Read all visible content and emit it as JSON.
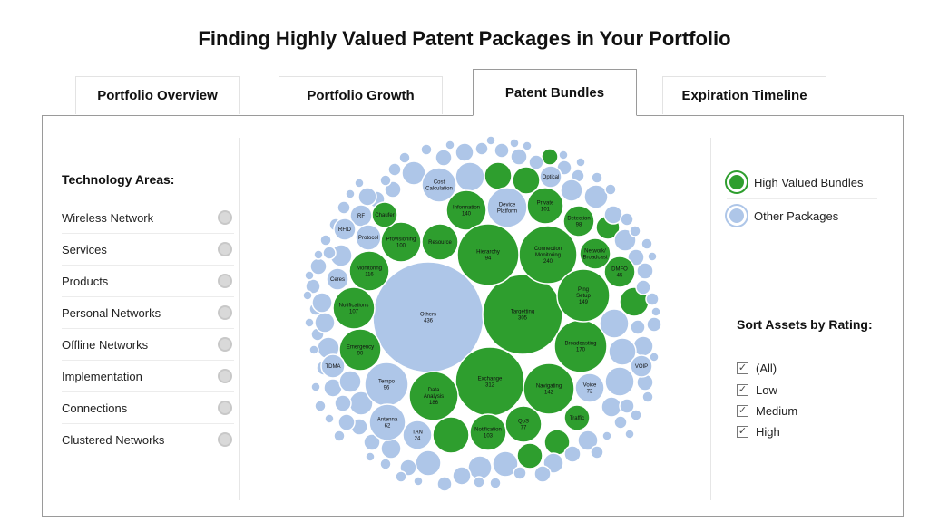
{
  "title": "Finding Highly Valued Patent Packages in Your Portfolio",
  "tabs": [
    {
      "label": "Portfolio Overview",
      "active": false
    },
    {
      "label": "Portfolio Growth",
      "active": false
    },
    {
      "label": "Patent Bundles",
      "active": true
    },
    {
      "label": "Expiration Timeline",
      "active": false
    }
  ],
  "technology_areas": {
    "title": "Technology Areas:",
    "items": [
      "Wireless Network",
      "Services",
      "Products",
      "Personal Networks",
      "Offline Networks",
      "Implementation",
      "Connections",
      "Clustered Networks"
    ]
  },
  "legend": {
    "high": {
      "label": "High Valued Bundles",
      "color": "#2e9e2e"
    },
    "other": {
      "label": "Other Packages",
      "color": "#aec6e8"
    }
  },
  "sort": {
    "title": "Sort Assets by Rating:",
    "options": [
      {
        "label": "(All)",
        "checked": true
      },
      {
        "label": "Low",
        "checked": true
      },
      {
        "label": "Medium",
        "checked": true
      },
      {
        "label": "High",
        "checked": true
      }
    ]
  },
  "chart_data": {
    "type": "bubble",
    "title": "",
    "colors": {
      "high": "#2e9e2e",
      "other": "#aec6e8",
      "border": "#ffffff"
    },
    "bubbles": [
      {
        "label": "Others",
        "value": 436,
        "group": "other"
      },
      {
        "label": "Exchange",
        "value": 312,
        "group": "high"
      },
      {
        "label": "Targetting",
        "value": 305,
        "group": "high"
      },
      {
        "label": "Connection Monitoring",
        "value": 240,
        "group": "high"
      },
      {
        "label": "Data Analysis",
        "value": 186,
        "group": "high"
      },
      {
        "label": "Broadcasting",
        "value": 170,
        "group": "high"
      },
      {
        "label": "Ping Setup",
        "value": 149,
        "group": "high"
      },
      {
        "label": "Navigating",
        "value": 142,
        "group": "high"
      },
      {
        "label": "Information",
        "value": 140,
        "group": "high"
      },
      {
        "label": "Monitoring",
        "value": 116,
        "group": "high"
      },
      {
        "label": "Notifications",
        "value": 107,
        "group": "high"
      },
      {
        "label": "Notification",
        "value": 103,
        "group": "high"
      },
      {
        "label": "Private",
        "value": 101,
        "group": "high"
      },
      {
        "label": "Provisioning",
        "value": 100,
        "group": "high"
      },
      {
        "label": "Detection",
        "value": 98,
        "group": "high"
      },
      {
        "label": "Tempo",
        "value": 96,
        "group": "other"
      },
      {
        "label": "Hierarchy",
        "value": 94,
        "group": "high"
      },
      {
        "label": "Emergency",
        "value": 90,
        "group": "high"
      },
      {
        "label": "QoS",
        "value": 77,
        "group": "high"
      },
      {
        "label": "Voice",
        "value": 72,
        "group": "other"
      },
      {
        "label": "Antenna",
        "value": 62,
        "group": "other"
      },
      {
        "label": "DMFO",
        "value": 45,
        "group": "high"
      },
      {
        "label": "TAN",
        "value": 24,
        "group": "other"
      },
      {
        "label": "Cost Calculation",
        "value": null,
        "group": "other"
      },
      {
        "label": "Device Platform",
        "value": null,
        "group": "other"
      },
      {
        "label": "Optical",
        "value": null,
        "group": "other"
      },
      {
        "label": "Chaufer",
        "value": null,
        "group": "high"
      },
      {
        "label": "Resource",
        "value": null,
        "group": "high"
      },
      {
        "label": "Network/ Broadcast",
        "value": null,
        "group": "high"
      },
      {
        "label": "RF",
        "value": null,
        "group": "other"
      },
      {
        "label": "RFID",
        "value": null,
        "group": "other"
      },
      {
        "label": "Protocol",
        "value": null,
        "group": "other"
      },
      {
        "label": "Ceres",
        "value": null,
        "group": "other"
      },
      {
        "label": "TDMA",
        "value": null,
        "group": "other"
      },
      {
        "label": "VOIP",
        "value": null,
        "group": "other"
      },
      {
        "label": "Traffic",
        "value": null,
        "group": "high"
      }
    ]
  }
}
